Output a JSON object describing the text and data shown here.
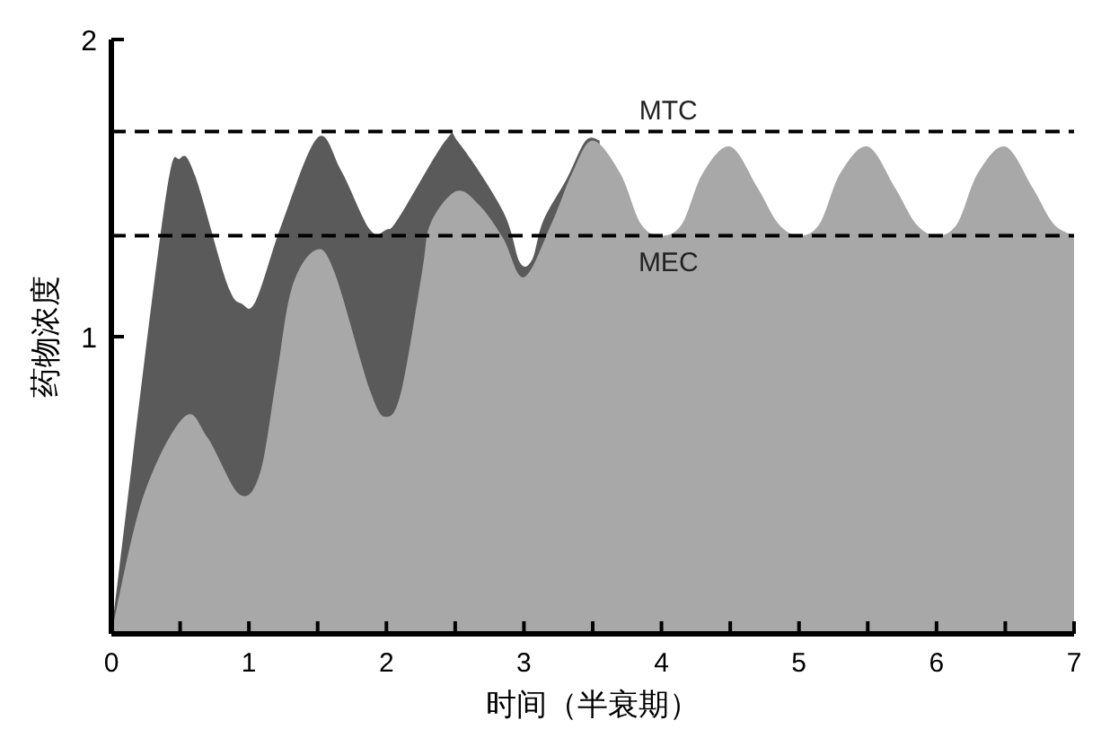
{
  "chart_data": {
    "type": "area",
    "xlabel": "时间（半衰期）",
    "ylabel": "药物浓度",
    "series": [
      {
        "color": "#5a5a5a",
        "x": [
          0,
          0.38,
          0.5,
          0.61,
          0.84,
          0.95,
          1.05,
          1.24,
          1.5,
          1.67,
          1.88,
          2.0,
          2.09,
          2.43,
          2.53,
          2.85,
          2.97,
          3.06,
          3.14,
          3.31,
          3.45,
          3.55
        ],
        "values": [
          0,
          1.42,
          1.6,
          1.54,
          1.18,
          1.11,
          1.12,
          1.38,
          1.67,
          1.56,
          1.36,
          1.36,
          1.4,
          1.66,
          1.65,
          1.42,
          1.25,
          1.26,
          1.39,
          1.53,
          1.66,
          1.66
        ]
      },
      {
        "color": "#a8a8a8",
        "x": [
          0,
          0.23,
          0.53,
          0.7,
          0.93,
          1.08,
          1.2,
          1.31,
          1.48,
          1.62,
          1.88,
          2.0,
          2.11,
          2.26,
          2.32,
          2.51,
          2.68,
          2.85,
          3.0,
          3.2,
          3.35,
          3.5,
          3.7,
          3.85,
          4.0,
          4.15,
          4.3,
          4.5,
          4.7,
          4.85,
          5.0,
          5.15,
          5.3,
          5.5,
          5.7,
          5.85,
          6.0,
          6.15,
          6.3,
          6.5,
          6.7,
          6.85,
          7.0
        ],
        "values": [
          0,
          0.46,
          0.73,
          0.66,
          0.47,
          0.54,
          0.86,
          1.16,
          1.29,
          1.22,
          0.82,
          0.73,
          0.82,
          1.22,
          1.38,
          1.49,
          1.44,
          1.33,
          1.2,
          1.38,
          1.55,
          1.66,
          1.55,
          1.38,
          1.34,
          1.38,
          1.55,
          1.64,
          1.5,
          1.38,
          1.34,
          1.38,
          1.55,
          1.64,
          1.5,
          1.38,
          1.34,
          1.38,
          1.55,
          1.64,
          1.5,
          1.38,
          1.34
        ]
      }
    ],
    "xlim": [
      0,
      7
    ],
    "ylim": [
      0,
      2
    ],
    "xticks": [
      0,
      {
        "value": 0.5,
        "label": null
      },
      1,
      {
        "value": 1.5,
        "label": null
      },
      2,
      {
        "value": 2.5,
        "label": null
      },
      3,
      {
        "value": 3.5,
        "label": null
      },
      4,
      {
        "value": 4.5,
        "label": null
      },
      5,
      {
        "value": 5.5,
        "label": null
      },
      6,
      {
        "value": 6.5,
        "label": null
      },
      7
    ],
    "yticks": [
      1,
      2
    ],
    "ref_lines": [
      {
        "axis": "y",
        "value": 1.69,
        "label": "MTC",
        "line_style": "dashed",
        "color": "#000000"
      },
      {
        "axis": "y",
        "value": 1.34,
        "label": "MEC",
        "line_style": "dashed",
        "color": "#000000"
      }
    ],
    "grid": false
  }
}
